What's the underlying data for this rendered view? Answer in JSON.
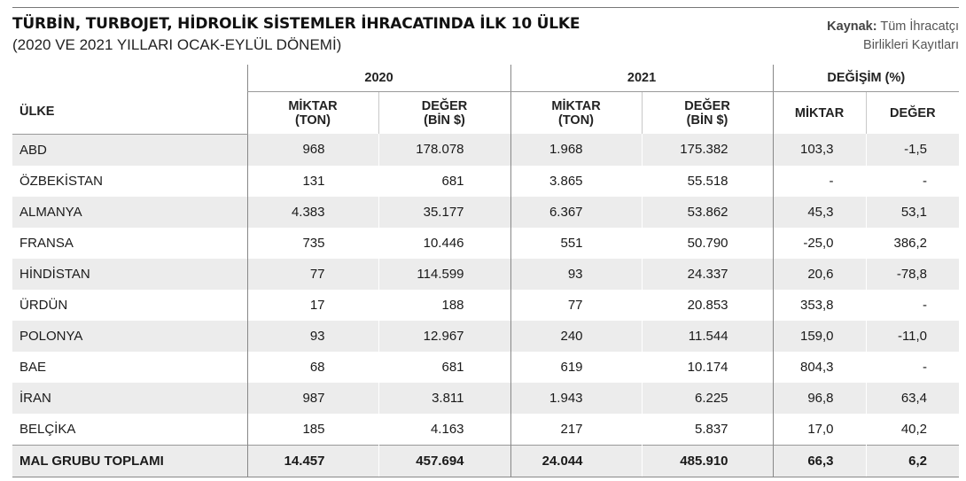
{
  "header": {
    "title": "TÜRBİN, TURBOJET, HİDROLİK SİSTEMLER İHRACATINDA İLK 10 ÜLKE",
    "subtitle": "(2020 VE 2021 YILLARI OCAK-EYLÜL DÖNEMİ)",
    "source_label": "Kaynak:",
    "source_line1": "Tüm İhracatçı",
    "source_line2": "Birlikleri Kayıtları"
  },
  "table": {
    "col_country": "ÜLKE",
    "group_2020": "2020",
    "group_2021": "2021",
    "group_change": "DEĞİŞİM (%)",
    "miktar_l1": "MİKTAR",
    "miktar_l2": "(TON)",
    "deger_l1": "DEĞER",
    "deger_l2": "(BİN $)",
    "change_miktar": "MİKTAR",
    "change_deger": "DEĞER"
  },
  "chart_data": {
    "type": "table",
    "columns": [
      "ÜLKE",
      "2020 MİKTAR (TON)",
      "2020 DEĞER (BİN $)",
      "2021 MİKTAR (TON)",
      "2021 DEĞER (BİN $)",
      "DEĞİŞİM (%) MİKTAR",
      "DEĞİŞİM (%) DEĞER"
    ],
    "rows": [
      [
        "ABD",
        "968",
        "178.078",
        "1.968",
        "175.382",
        "103,3",
        "-1,5"
      ],
      [
        "ÖZBEKİSTAN",
        "131",
        "681",
        "3.865",
        "55.518",
        "-",
        "-"
      ],
      [
        "ALMANYA",
        "4.383",
        "35.177",
        "6.367",
        "53.862",
        "45,3",
        "53,1"
      ],
      [
        "FRANSA",
        "735",
        "10.446",
        "551",
        "50.790",
        "-25,0",
        "386,2"
      ],
      [
        "HİNDİSTAN",
        "77",
        "114.599",
        "93",
        "24.337",
        "20,6",
        "-78,8"
      ],
      [
        "ÜRDÜN",
        "17",
        "188",
        "77",
        "20.853",
        "353,8",
        "-"
      ],
      [
        "POLONYA",
        "93",
        "12.967",
        "240",
        "11.544",
        "159,0",
        "-11,0"
      ],
      [
        "BAE",
        "68",
        "681",
        "619",
        "10.174",
        "804,3",
        "-"
      ],
      [
        "İRAN",
        "987",
        "3.811",
        "1.943",
        "6.225",
        "96,8",
        "63,4"
      ],
      [
        "BELÇİKA",
        "185",
        "4.163",
        "217",
        "5.837",
        "17,0",
        "40,2"
      ]
    ],
    "total": [
      "MAL GRUBU TOPLAMI",
      "14.457",
      "457.694",
      "24.044",
      "485.910",
      "66,3",
      "6,2"
    ]
  }
}
